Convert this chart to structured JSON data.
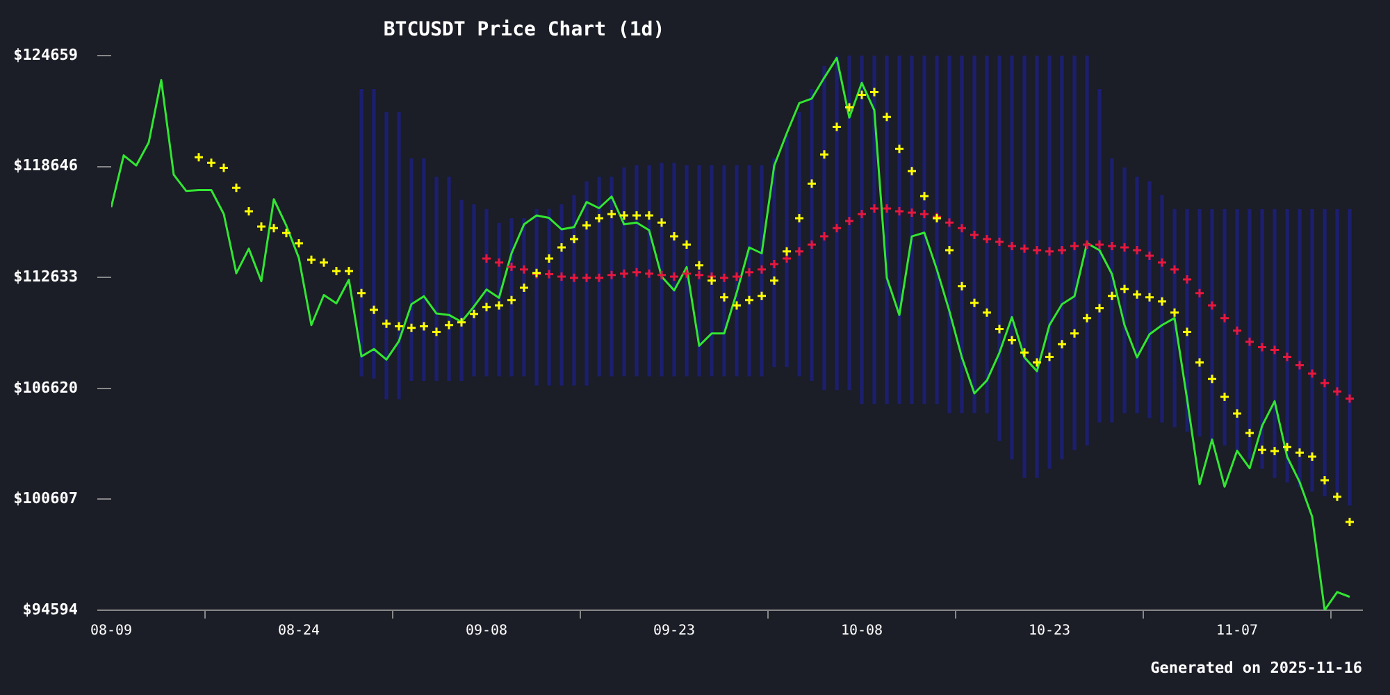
{
  "chart_data": {
    "type": "line",
    "title": "BTCUSDT Price Chart (1d)",
    "annotations": [
      "Generated on 2025-11-16"
    ],
    "x": [
      "2025-08-09",
      "2025-08-10",
      "2025-08-11",
      "2025-08-12",
      "2025-08-13",
      "2025-08-14",
      "2025-08-15",
      "2025-08-16",
      "2025-08-17",
      "2025-08-18",
      "2025-08-19",
      "2025-08-20",
      "2025-08-21",
      "2025-08-22",
      "2025-08-23",
      "2025-08-24",
      "2025-08-25",
      "2025-08-26",
      "2025-08-27",
      "2025-08-28",
      "2025-08-29",
      "2025-08-30",
      "2025-08-31",
      "2025-09-01",
      "2025-09-02",
      "2025-09-03",
      "2025-09-04",
      "2025-09-05",
      "2025-09-06",
      "2025-09-07",
      "2025-09-08",
      "2025-09-09",
      "2025-09-10",
      "2025-09-11",
      "2025-09-12",
      "2025-09-13",
      "2025-09-14",
      "2025-09-15",
      "2025-09-16",
      "2025-09-17",
      "2025-09-18",
      "2025-09-19",
      "2025-09-20",
      "2025-09-21",
      "2025-09-22",
      "2025-09-23",
      "2025-09-24",
      "2025-09-25",
      "2025-09-26",
      "2025-09-27",
      "2025-09-28",
      "2025-09-29",
      "2025-09-30",
      "2025-10-01",
      "2025-10-02",
      "2025-10-03",
      "2025-10-04",
      "2025-10-05",
      "2025-10-06",
      "2025-10-07",
      "2025-10-08",
      "2025-10-09",
      "2025-10-10",
      "2025-10-11",
      "2025-10-12",
      "2025-10-13",
      "2025-10-14",
      "2025-10-15",
      "2025-10-16",
      "2025-10-17",
      "2025-10-18",
      "2025-10-19",
      "2025-10-20",
      "2025-10-21",
      "2025-10-22",
      "2025-10-23",
      "2025-10-24",
      "2025-10-25",
      "2025-10-26",
      "2025-10-27",
      "2025-10-28",
      "2025-10-29",
      "2025-10-30",
      "2025-10-31",
      "2025-11-01",
      "2025-11-02",
      "2025-11-03",
      "2025-11-04",
      "2025-11-05",
      "2025-11-06",
      "2025-11-07",
      "2025-11-08",
      "2025-11-09",
      "2025-11-10",
      "2025-11-11",
      "2025-11-12",
      "2025-11-13",
      "2025-11-14",
      "2025-11-15",
      "2025-11-16"
    ],
    "series": [
      {
        "type": "line",
        "color": "#1c1f6e",
        "values": [
          null,
          null,
          null,
          null,
          null,
          null,
          null,
          null,
          null,
          null,
          null,
          null,
          null,
          null,
          null,
          null,
          null,
          null,
          null,
          null,
          null,
          null,
          null,
          null,
          null,
          null,
          null,
          null,
          null,
          null,
          null,
          null,
          null,
          null,
          null,
          null,
          null,
          null,
          null,
          null,
          null,
          null,
          null,
          null,
          null,
          null,
          null,
          null,
          null,
          null,
          null,
          null,
          null,
          null,
          null,
          null,
          null,
          null,
          null,
          null,
          null,
          null,
          null,
          null,
          null,
          null,
          null,
          null,
          null,
          null,
          null,
          null,
          null,
          null,
          null,
          null,
          null,
          null,
          null,
          null,
          null,
          null,
          null,
          null,
          null,
          null,
          null,
          null,
          null,
          null,
          null,
          null,
          null,
          null,
          null,
          null,
          null,
          null,
          null,
          null
        ],
        "upper": [
          null,
          null,
          null,
          null,
          null,
          null,
          null,
          null,
          null,
          null,
          null,
          null,
          null,
          null,
          null,
          null,
          null,
          null,
          null,
          null,
          122830,
          122830,
          121580,
          121580,
          119070,
          119070,
          118070,
          118070,
          116820,
          116570,
          116320,
          115560,
          115820,
          115820,
          116320,
          116320,
          116570,
          117070,
          117820,
          118070,
          118070,
          118570,
          118700,
          118700,
          118820,
          118820,
          118700,
          118700,
          118700,
          118700,
          118700,
          118700,
          118700,
          119070,
          120320,
          121580,
          122830,
          124080,
          124650,
          124650,
          124650,
          124650,
          124650,
          124650,
          124650,
          124650,
          124650,
          124650,
          124650,
          124650,
          124650,
          124650,
          124650,
          124650,
          124650,
          124650,
          124650,
          124650,
          124650,
          122830,
          119070,
          118570,
          118070,
          117820,
          117070,
          116320,
          116320,
          116320,
          116320,
          116320,
          116320,
          116320,
          116320,
          116320,
          116320,
          116320,
          116320,
          116320,
          116320,
          116320
        ],
        "lower": [
          null,
          null,
          null,
          null,
          null,
          null,
          null,
          null,
          null,
          null,
          null,
          null,
          null,
          null,
          null,
          null,
          null,
          null,
          null,
          null,
          107300,
          107170,
          106050,
          106050,
          107050,
          107050,
          107050,
          107050,
          107050,
          107300,
          107300,
          107300,
          107300,
          107300,
          106800,
          106800,
          106800,
          106800,
          106800,
          107300,
          107300,
          107300,
          107300,
          107300,
          107300,
          107300,
          107300,
          107300,
          107300,
          107300,
          107300,
          107300,
          107300,
          107800,
          107800,
          107300,
          107050,
          106550,
          106550,
          106550,
          105800,
          105800,
          105800,
          105800,
          105800,
          105800,
          105800,
          105300,
          105300,
          105300,
          105300,
          103790,
          102790,
          101790,
          101790,
          102290,
          102790,
          103290,
          103540,
          104790,
          104790,
          105300,
          105300,
          105040,
          104790,
          104540,
          104290,
          104040,
          103790,
          103540,
          103290,
          102790,
          102290,
          101790,
          101540,
          101290,
          101040,
          100790,
          100540,
          100290
        ]
      },
      {
        "color": "#32e632",
        "marker": "none",
        "values": [
          116440,
          119250,
          118700,
          119950,
          123330,
          118200,
          117320,
          117370,
          117370,
          116070,
          112860,
          114190,
          112430,
          116870,
          115440,
          113690,
          110050,
          111680,
          111230,
          112510,
          108350,
          108750,
          108180,
          109180,
          111180,
          111610,
          110680,
          110600,
          110230,
          111060,
          111980,
          111530,
          113940,
          115510,
          115990,
          115860,
          115240,
          115360,
          116720,
          116390,
          117020,
          115510,
          115610,
          115190,
          112680,
          111930,
          113190,
          108930,
          109600,
          109600,
          111810,
          114260,
          113940,
          118700,
          120450,
          122080,
          122330,
          123460,
          124530,
          121300,
          123180,
          121700,
          112610,
          110600,
          114860,
          115060,
          113060,
          110810,
          108300,
          106350,
          107050,
          108550,
          110480,
          108300,
          107550,
          110050,
          111180,
          111610,
          114490,
          114110,
          112810,
          110050,
          108300,
          109550,
          110050,
          110430,
          106050,
          101420,
          103850,
          101290,
          103240,
          102290,
          104590,
          105920,
          102910,
          101540,
          99660,
          94600,
          95580,
          95320
        ]
      },
      {
        "type": "scatter",
        "color": "#ffff00",
        "marker": "cross",
        "values": [
          null,
          null,
          null,
          null,
          null,
          null,
          null,
          119150,
          118850,
          118570,
          117490,
          116220,
          115390,
          115310,
          115040,
          114490,
          113590,
          113440,
          112980,
          112980,
          111780,
          110880,
          110130,
          109980,
          109900,
          109980,
          109680,
          110050,
          110200,
          110650,
          111030,
          111110,
          111410,
          112080,
          112880,
          113660,
          114260,
          114710,
          115460,
          115840,
          116070,
          115990,
          115990,
          115990,
          115610,
          114860,
          114410,
          113290,
          112460,
          111560,
          111110,
          111410,
          111630,
          112460,
          114040,
          115840,
          117720,
          119300,
          120800,
          121850,
          122530,
          122680,
          121330,
          119600,
          118400,
          117040,
          115840,
          114110,
          112160,
          111260,
          110730,
          109830,
          109230,
          108560,
          108030,
          108330,
          109010,
          109600,
          110430,
          110960,
          111630,
          112010,
          111710,
          111560,
          111330,
          110730,
          109680,
          108030,
          107130,
          106160,
          105260,
          104200,
          103290,
          103220,
          103440,
          103140,
          102920,
          101640,
          100740,
          99380
        ]
      },
      {
        "type": "scatter",
        "color": "#e8173c",
        "marker": "cross",
        "values": [
          null,
          null,
          null,
          null,
          null,
          null,
          null,
          null,
          null,
          null,
          null,
          null,
          null,
          null,
          null,
          null,
          null,
          null,
          null,
          null,
          null,
          null,
          null,
          null,
          null,
          null,
          null,
          null,
          null,
          null,
          113660,
          113440,
          113210,
          113060,
          112810,
          112810,
          112680,
          112610,
          112610,
          112610,
          112760,
          112840,
          112910,
          112840,
          112760,
          112680,
          112840,
          112760,
          112680,
          112610,
          112680,
          112910,
          113060,
          113360,
          113660,
          114040,
          114410,
          114860,
          115310,
          115690,
          116070,
          116370,
          116370,
          116220,
          116140,
          116070,
          115920,
          115610,
          115310,
          114940,
          114710,
          114560,
          114340,
          114190,
          114110,
          114040,
          114110,
          114340,
          114410,
          114410,
          114340,
          114260,
          114110,
          113810,
          113440,
          113060,
          112530,
          111780,
          111110,
          110430,
          109750,
          109150,
          108850,
          108700,
          108330,
          107870,
          107420,
          106900,
          106450,
          106070
        ]
      }
    ],
    "xlim": [
      "2025-08-09",
      "2025-11-17"
    ],
    "xticks": [
      {
        "value": "2025-08-09",
        "label": "08-09"
      },
      {
        "value": "2025-08-24",
        "label": "08-24"
      },
      {
        "value": "2025-09-08",
        "label": "09-08"
      },
      {
        "value": "2025-09-23",
        "label": "09-23"
      },
      {
        "value": "2025-10-08",
        "label": "10-08"
      },
      {
        "value": "2025-10-23",
        "label": "10-23"
      },
      {
        "value": "2025-11-07",
        "label": "11-07"
      }
    ],
    "ylim": [
      94594,
      124659
    ],
    "yticks": [
      {
        "value": 94594,
        "label": "$94594"
      },
      {
        "value": 100607,
        "label": "$100607"
      },
      {
        "value": 106620,
        "label": "$106620"
      },
      {
        "value": 112633,
        "label": "$112633"
      },
      {
        "value": 118646,
        "label": "$118646"
      },
      {
        "value": 124659,
        "label": "$124659"
      }
    ],
    "grid": false,
    "legend": false
  }
}
